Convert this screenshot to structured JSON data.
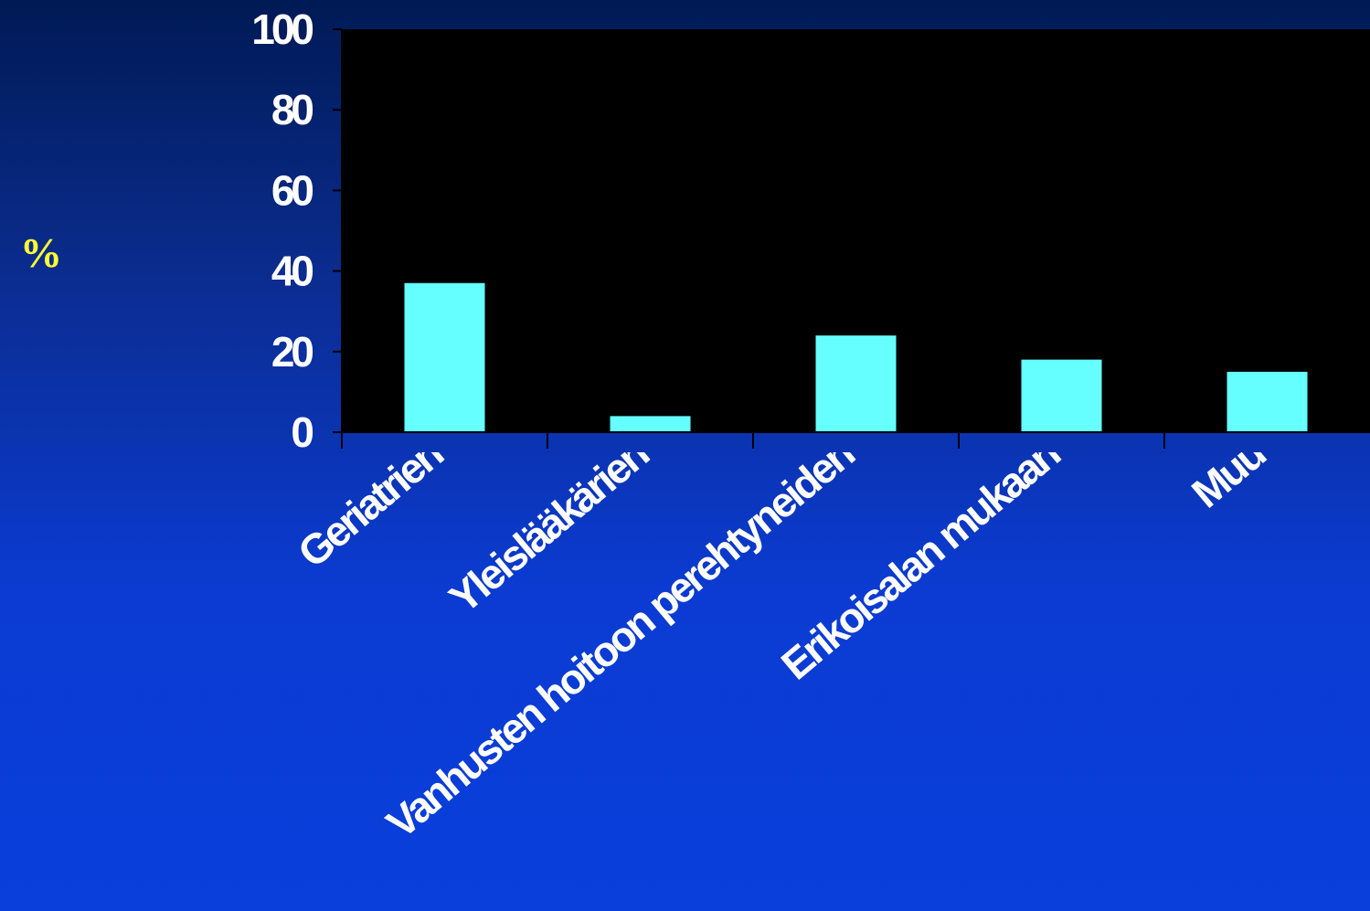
{
  "chart_data": {
    "type": "bar",
    "categories": [
      "Geriatrien",
      "Yleislääkärien",
      "Vanhusten hoitoon perehtyneiden",
      "Erikoisalan mukaan",
      "Muu"
    ],
    "values": [
      37,
      4,
      24,
      18,
      15
    ],
    "ylabel": "%",
    "ylim": [
      0,
      100
    ],
    "yticks": [
      0,
      20,
      40,
      60,
      80,
      100
    ],
    "grid": false,
    "colors": {
      "bar": "#66ffff",
      "plot_background": "#000000",
      "axis": "#000000",
      "text": "#ffffff",
      "ylabel": "#ffff33"
    }
  }
}
